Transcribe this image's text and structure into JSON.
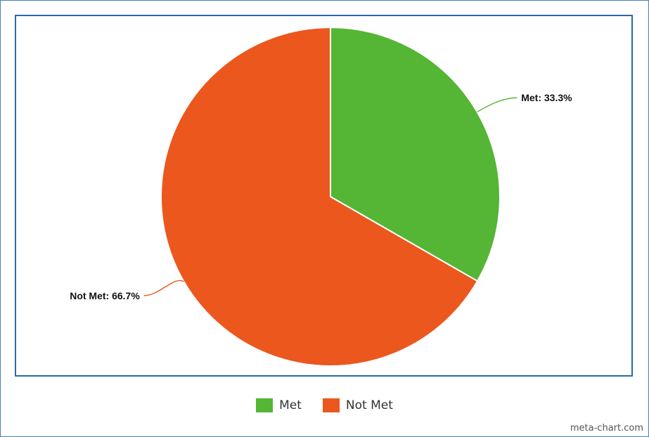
{
  "chart_data": {
    "type": "pie",
    "categories": [
      "Met",
      "Not Met"
    ],
    "values": [
      33.3,
      66.7
    ],
    "labels": [
      "Met: 33.3%",
      "Not Met: 66.7%"
    ],
    "colors": [
      "#55b535",
      "#ec571d"
    ],
    "legend": "bottom-center",
    "title": ""
  },
  "legend": {
    "items": [
      {
        "label": "Met",
        "color": "#55b535"
      },
      {
        "label": "Not Met",
        "color": "#ec571d"
      }
    ]
  },
  "watermark": "meta-chart.com"
}
